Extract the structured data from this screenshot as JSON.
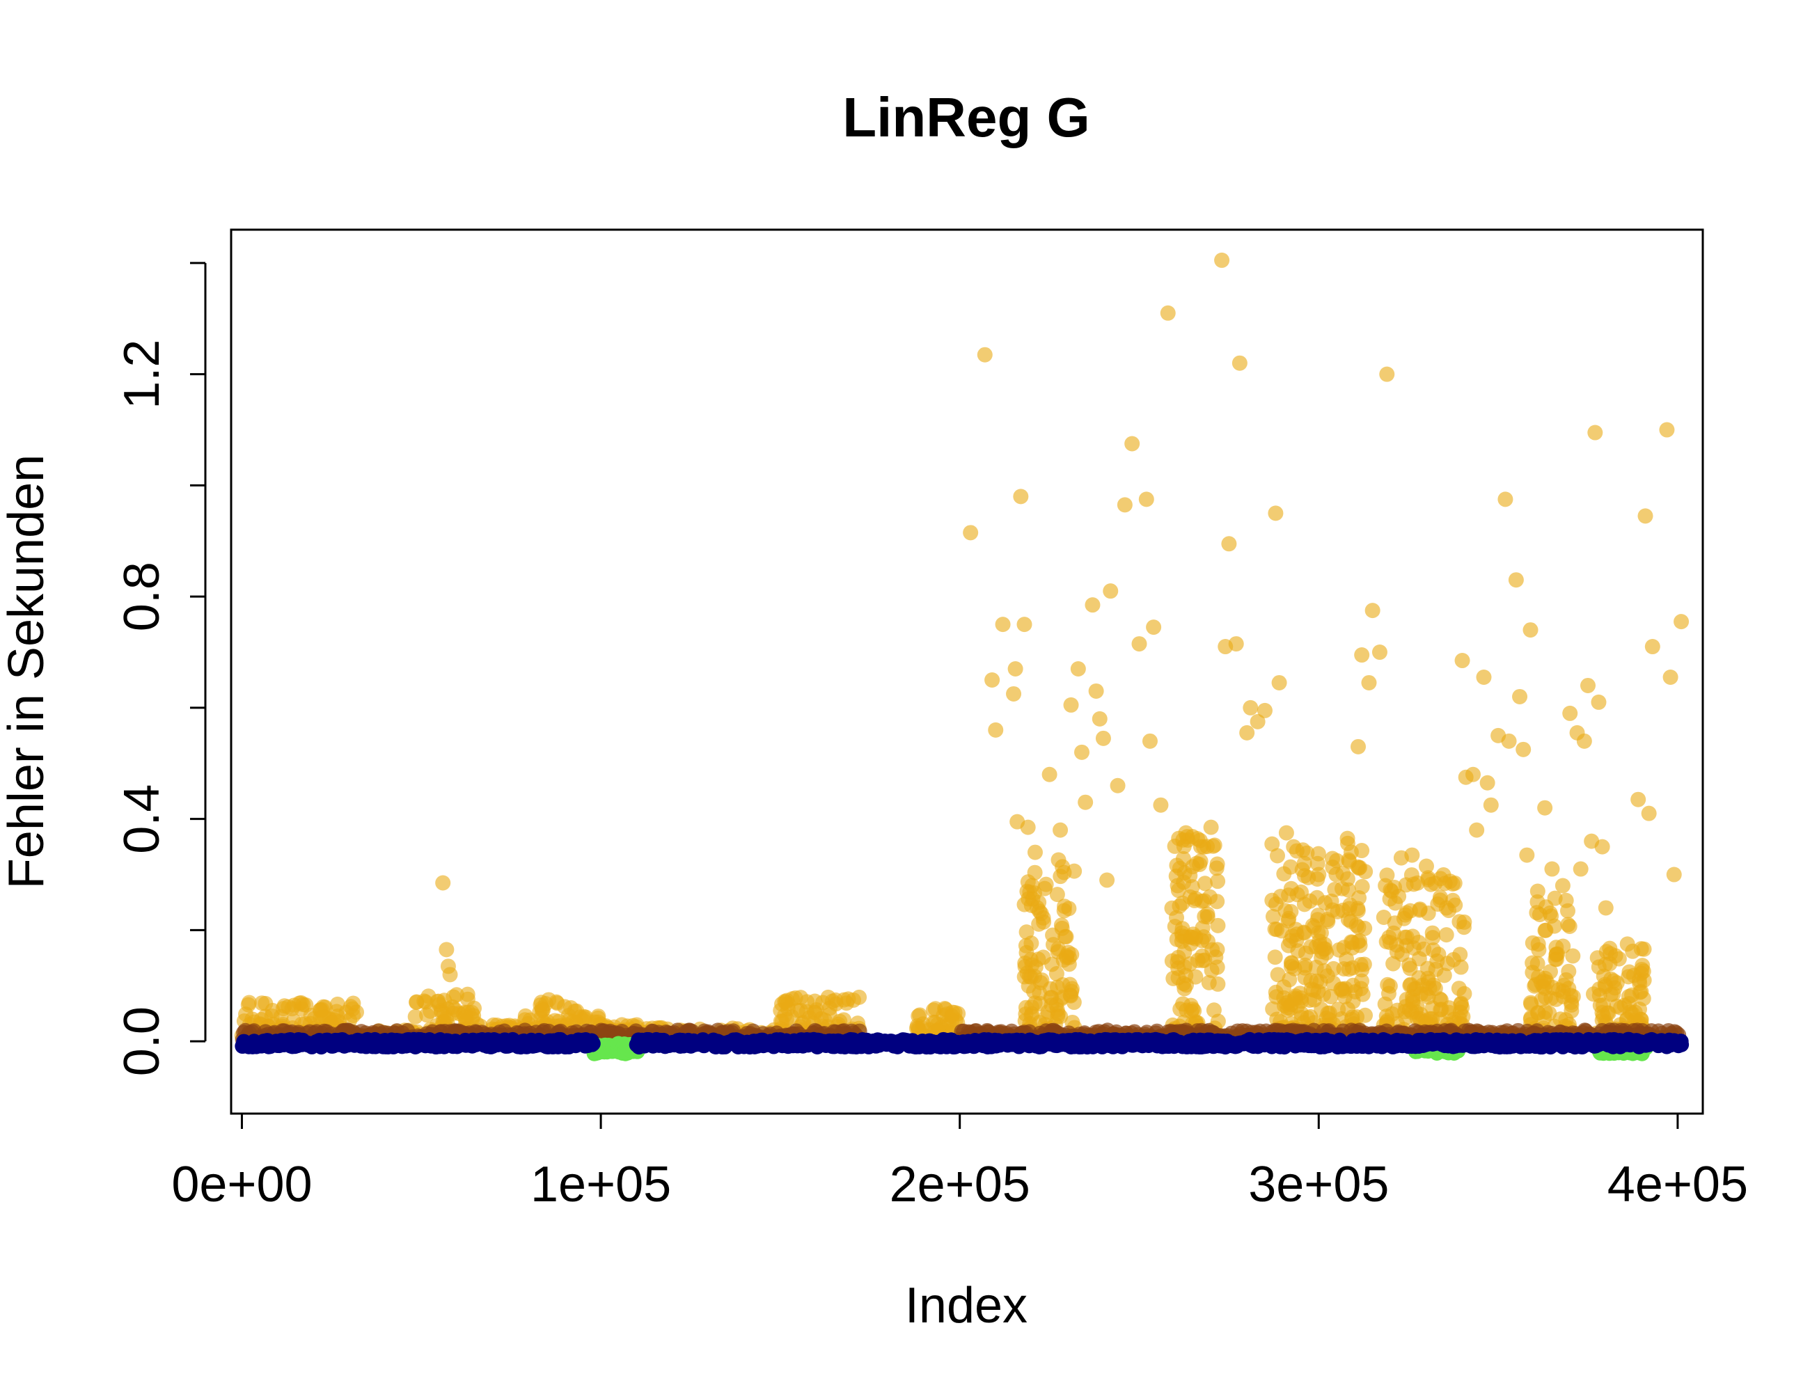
{
  "chart_data": {
    "type": "scatter",
    "title": "LinReg G",
    "xlabel": "Index",
    "ylabel": "Fehler in Sekunden",
    "xlim": [
      -3000,
      407000
    ],
    "ylim": [
      -0.13,
      1.46
    ],
    "x_ticks": [
      {
        "value": 0,
        "label": "0e+00"
      },
      {
        "value": 100000,
        "label": "1e+05"
      },
      {
        "value": 200000,
        "label": "2e+05"
      },
      {
        "value": 300000,
        "label": "3e+05"
      },
      {
        "value": 400000,
        "label": "4e+05"
      }
    ],
    "y_ticks": [
      {
        "value": 0.0,
        "label": "0.0"
      },
      {
        "value": 0.2,
        "label": ""
      },
      {
        "value": 0.4,
        "label": "0.4"
      },
      {
        "value": 0.6,
        "label": ""
      },
      {
        "value": 0.8,
        "label": "0.8"
      },
      {
        "value": 1.0,
        "label": ""
      },
      {
        "value": 1.2,
        "label": "1.2"
      },
      {
        "value": 1.4,
        "label": ""
      }
    ],
    "grid": false,
    "series": [
      {
        "color": "#EAAA14",
        "opacity": 0.6,
        "points": [
          [
            56000,
            0.285
          ],
          [
            57000,
            0.165
          ],
          [
            57500,
            0.135
          ],
          [
            58000,
            0.12
          ],
          [
            203000,
            0.915
          ],
          [
            207000,
            1.235
          ],
          [
            209000,
            0.65
          ],
          [
            210000,
            0.56
          ],
          [
            212000,
            0.75
          ],
          [
            215000,
            0.625
          ],
          [
            215500,
            0.67
          ],
          [
            216000,
            0.395
          ],
          [
            217000,
            0.98
          ],
          [
            218000,
            0.75
          ],
          [
            219000,
            0.385
          ],
          [
            221000,
            0.34
          ],
          [
            222000,
            0.25
          ],
          [
            225000,
            0.48
          ],
          [
            228000,
            0.38
          ],
          [
            231000,
            0.605
          ],
          [
            233000,
            0.67
          ],
          [
            234000,
            0.52
          ],
          [
            235000,
            0.43
          ],
          [
            237000,
            0.785
          ],
          [
            238000,
            0.63
          ],
          [
            239000,
            0.58
          ],
          [
            240000,
            0.545
          ],
          [
            241000,
            0.29
          ],
          [
            242000,
            0.81
          ],
          [
            244000,
            0.46
          ],
          [
            246000,
            0.965
          ],
          [
            248000,
            1.075
          ],
          [
            250000,
            0.715
          ],
          [
            252000,
            0.975
          ],
          [
            253000,
            0.54
          ],
          [
            254000,
            0.745
          ],
          [
            256000,
            0.425
          ],
          [
            258000,
            1.31
          ],
          [
            261000,
            0.365
          ],
          [
            263000,
            0.375
          ],
          [
            266000,
            0.32
          ],
          [
            270000,
            0.385
          ],
          [
            273000,
            1.405
          ],
          [
            274000,
            0.71
          ],
          [
            275000,
            0.895
          ],
          [
            277000,
            0.715
          ],
          [
            278000,
            1.22
          ],
          [
            280000,
            0.555
          ],
          [
            281000,
            0.6
          ],
          [
            283000,
            0.575
          ],
          [
            285000,
            0.595
          ],
          [
            287000,
            0.355
          ],
          [
            288000,
            0.95
          ],
          [
            289000,
            0.645
          ],
          [
            291000,
            0.375
          ],
          [
            293000,
            0.35
          ],
          [
            296000,
            0.32
          ],
          [
            300000,
            0.3
          ],
          [
            305000,
            0.325
          ],
          [
            308000,
            0.365
          ],
          [
            311000,
            0.53
          ],
          [
            312000,
            0.695
          ],
          [
            314000,
            0.645
          ],
          [
            315000,
            0.775
          ],
          [
            317000,
            0.7
          ],
          [
            319000,
            1.2
          ],
          [
            323000,
            0.33
          ],
          [
            326000,
            0.335
          ],
          [
            330000,
            0.315
          ],
          [
            338000,
            0.245
          ],
          [
            340000,
            0.685
          ],
          [
            341000,
            0.475
          ],
          [
            343000,
            0.48
          ],
          [
            344000,
            0.38
          ],
          [
            346000,
            0.655
          ],
          [
            347000,
            0.465
          ],
          [
            348000,
            0.425
          ],
          [
            350000,
            0.55
          ],
          [
            352000,
            0.975
          ],
          [
            353000,
            0.54
          ],
          [
            355000,
            0.83
          ],
          [
            356000,
            0.62
          ],
          [
            357000,
            0.525
          ],
          [
            358000,
            0.335
          ],
          [
            359000,
            0.74
          ],
          [
            361000,
            0.27
          ],
          [
            363000,
            0.42
          ],
          [
            365000,
            0.31
          ],
          [
            368000,
            0.28
          ],
          [
            370000,
            0.59
          ],
          [
            372000,
            0.555
          ],
          [
            373000,
            0.31
          ],
          [
            374000,
            0.54
          ],
          [
            375000,
            0.64
          ],
          [
            376000,
            0.36
          ],
          [
            377000,
            1.095
          ],
          [
            378000,
            0.61
          ],
          [
            379000,
            0.35
          ],
          [
            380000,
            0.24
          ],
          [
            386000,
            0.175
          ],
          [
            389000,
            0.435
          ],
          [
            391000,
            0.945
          ],
          [
            392000,
            0.41
          ],
          [
            393000,
            0.71
          ],
          [
            397000,
            1.1
          ],
          [
            398000,
            0.655
          ],
          [
            399000,
            0.3
          ],
          [
            401000,
            0.755
          ]
        ],
        "clusters": [
          {
            "x": [
              0,
              32000
            ],
            "y": [
              0.0,
              0.07
            ]
          },
          {
            "x": [
              30000,
              48000
            ],
            "y": [
              0.0,
              0.02
            ]
          },
          {
            "x": [
              48000,
              66000
            ],
            "y": [
              0.0,
              0.09
            ]
          },
          {
            "x": [
              66000,
              78000
            ],
            "y": [
              0.0,
              0.03
            ]
          },
          {
            "x": [
              78000,
              100000
            ],
            "y": [
              0.0,
              0.075
            ]
          },
          {
            "x": [
              100000,
              110000
            ],
            "y": [
              0.0,
              0.03
            ]
          },
          {
            "x": [
              110000,
              150000
            ],
            "y": [
              0.0,
              0.025
            ]
          },
          {
            "x": [
              150000,
              172000
            ],
            "y": [
              0.0,
              0.08
            ]
          },
          {
            "x": [
              188000,
              200000
            ],
            "y": [
              0.0,
              0.06
            ]
          },
          {
            "x": [
              218000,
              232000
            ],
            "y": [
              0.0,
              0.33
            ]
          },
          {
            "x": [
              259000,
              272000
            ],
            "y": [
              0.0,
              0.37
            ]
          },
          {
            "x": [
              287000,
              313000
            ],
            "y": [
              0.0,
              0.36
            ]
          },
          {
            "x": [
              318000,
              341000
            ],
            "y": [
              0.0,
              0.3
            ]
          },
          {
            "x": [
              359000,
              371000
            ],
            "y": [
              0.0,
              0.26
            ]
          },
          {
            "x": [
              376000,
              391000
            ],
            "y": [
              0.0,
              0.17
            ]
          }
        ]
      },
      {
        "color": "#8B4513",
        "opacity": 0.7,
        "segments": [
          [
            0,
            172000
          ],
          [
            200000,
            400000
          ]
        ],
        "y": [
          0.002,
          0.02
        ]
      },
      {
        "color": "#66E64D",
        "opacity": 1.0,
        "segments": [
          [
            98000,
            110000
          ],
          [
            327000,
            339000
          ],
          [
            378000,
            391000
          ]
        ],
        "y": [
          -0.022,
          -0.004
        ]
      },
      {
        "color": "#000080",
        "opacity": 1.0,
        "segments": [
          [
            0,
            98000
          ],
          [
            110000,
            401000
          ]
        ],
        "y": [
          -0.01,
          0.003
        ]
      }
    ]
  }
}
